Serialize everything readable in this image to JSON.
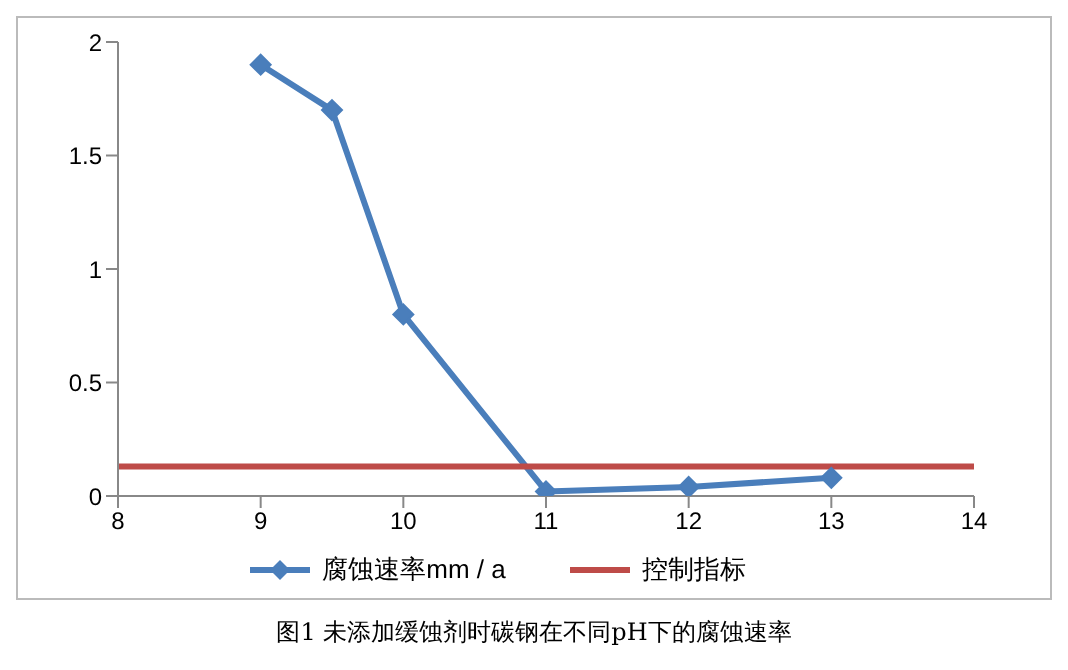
{
  "chart_data": {
    "type": "line",
    "xlim": [
      8,
      14
    ],
    "xticks": [
      8,
      9,
      10,
      11,
      12,
      13,
      14
    ],
    "ylim": [
      0,
      2
    ],
    "yticks": [
      0,
      0.5,
      1,
      1.5,
      2
    ],
    "grid": false,
    "legend": "bottom",
    "marker": "diamond",
    "line_style": "solid",
    "series": [
      {
        "name": "腐蚀速率mm / a",
        "color": "#4a7ebb",
        "x": [
          9,
          9.5,
          10,
          11,
          12,
          13
        ],
        "values": [
          1.9,
          1.7,
          0.8,
          0.02,
          0.04,
          0.08
        ]
      },
      {
        "name": "控制指标",
        "color": "#be4b48",
        "x": [
          8,
          14
        ],
        "values": [
          0.13,
          0.13
        ],
        "marker": "none"
      }
    ],
    "annotations": [
      "图1 未添加缓蚀剂时碳钢在不同pH下的腐蚀速率"
    ]
  }
}
